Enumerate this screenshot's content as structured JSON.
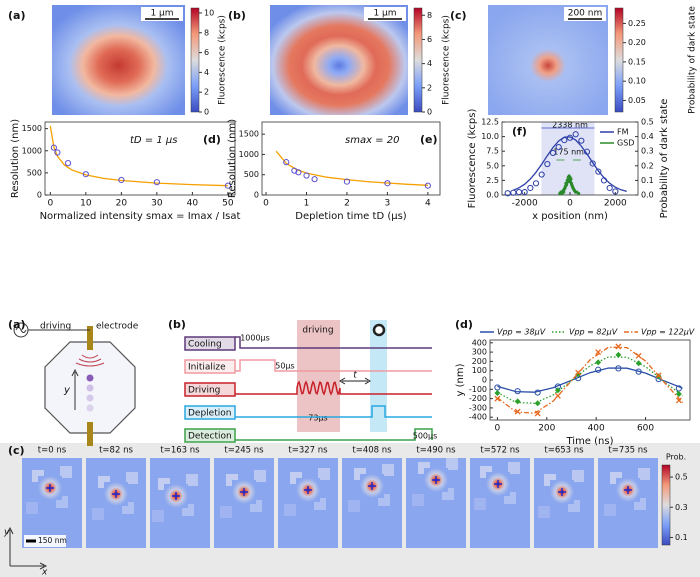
{
  "chart_data": [
    {
      "type": "heatmap",
      "panel": "(a)",
      "pattern": "spot",
      "scalebar": "1 μm",
      "colorbar_label": "Fluorescence (kcps)",
      "clim": [
        0,
        10.5
      ],
      "cticks": [
        0,
        2,
        4,
        6,
        8,
        10
      ]
    },
    {
      "type": "heatmap",
      "panel": "(b)",
      "pattern": "donut",
      "scalebar": "1 μm",
      "colorbar_label": "Fluorescence (kcps)",
      "clim": [
        0,
        8.6
      ],
      "cticks": [
        0,
        2,
        4,
        6,
        8
      ]
    },
    {
      "type": "heatmap",
      "panel": "(c)",
      "pattern": "dot",
      "scalebar": "200 nm",
      "colorbar_label": "Probability of dark state",
      "clim": [
        0.02,
        0.29
      ],
      "cticks": [
        0.05,
        {
          "value": 0.1,
          "label": "0.10"
        },
        0.15,
        {
          "value": 0.2,
          "label": "0.20"
        },
        0.25
      ]
    },
    {
      "type": "scatter",
      "panel": "(d)",
      "annotation": "tD = 1 μs",
      "xlabel": "Normalized intensity smax = Imax / Isat",
      "ylabel": "Resolution (nm)",
      "xlim": [
        -1.5,
        52
      ],
      "ylim": [
        0,
        1650
      ],
      "xticks": [
        0,
        10,
        20,
        30,
        40,
        50
      ],
      "yticks": [
        0,
        500,
        1000,
        1500
      ],
      "series": [
        {
          "color": "#5b4fcf",
          "marker": "open-circle",
          "x": [
            1,
            2,
            5,
            10,
            20,
            30,
            50
          ],
          "values": [
            1070,
            960,
            720,
            470,
            340,
            290,
            210
          ],
          "fit_color": "#f5a000",
          "fit_style": "solid",
          "fit_x": [
            0,
            1,
            2,
            4,
            6,
            10,
            15,
            20,
            30,
            40,
            50
          ],
          "fit": [
            1560,
            1082,
            878,
            676,
            570,
            454,
            376,
            328,
            270,
            235,
            210
          ]
        }
      ]
    },
    {
      "type": "scatter",
      "panel": "(e)",
      "annotation": "smax = 20",
      "xlabel": "Depletion time tD (μs)",
      "ylabel": "Resolution (nm)",
      "xlim": [
        -0.1,
        4.3
      ],
      "ylim": [
        0,
        1800
      ],
      "xticks": [
        0,
        1,
        2,
        3,
        4
      ],
      "yticks": [
        0,
        500,
        1000,
        1500
      ],
      "series": [
        {
          "color": "#5b4fcf",
          "marker": "open-circle",
          "x": [
            0.5,
            0.7,
            0.8,
            1.0,
            1.2,
            2,
            3,
            4
          ],
          "values": [
            810,
            600,
            560,
            480,
            390,
            330,
            290,
            230
          ],
          "fit_color": "#f5a000",
          "fit_style": "solid",
          "fit_x": [
            0.25,
            0.5,
            0.75,
            1,
            1.5,
            2,
            2.5,
            3,
            3.5,
            4
          ],
          "fit": [
            1080,
            780,
            630,
            540,
            440,
            380,
            330,
            295,
            265,
            240
          ]
        }
      ]
    },
    {
      "type": "scatter",
      "panel": "(f)",
      "annotations": [
        "2338 nm",
        "175 nm"
      ],
      "xlabel": "x position (nm)",
      "ylabel": "Fluorescence (kcps)",
      "y2label": "Probability of dark state",
      "ylabel_color": "#3347c8",
      "y2label_color": "#2a8a2a",
      "legend": "upper right",
      "xlim": [
        -3000,
        3000
      ],
      "ylim": [
        0,
        12.5
      ],
      "y2lim": [
        0,
        0.5
      ],
      "xticks": [
        -2000,
        0,
        2000
      ],
      "yticks": [
        {
          "value": 0,
          "label": "0.0"
        },
        2.5,
        {
          "value": 5,
          "label": "5.0"
        },
        7.5,
        {
          "value": 10,
          "label": "10.0"
        },
        12.5
      ],
      "y2ticks": [
        {
          "value": 0,
          "label": "0.0"
        },
        0.1,
        0.2,
        0.3,
        0.4,
        0.5
      ],
      "series": [
        {
          "name": "FM",
          "color": "#2d3fa8",
          "marker": "open-circle",
          "x": [
            -2750,
            -2500,
            -2250,
            -2000,
            -1750,
            -1500,
            -1250,
            -1000,
            -750,
            -500,
            -250,
            0,
            250,
            500,
            750,
            1000,
            1250,
            1500,
            1750,
            2000
          ],
          "values": [
            0.3,
            0.4,
            0.5,
            0.5,
            1.2,
            2.0,
            3.5,
            5.3,
            7.2,
            8.2,
            9.4,
            9.8,
            10.4,
            9.3,
            7.4,
            5.4,
            4.0,
            2.5,
            1.2,
            0.6
          ],
          "fit_color": "#2d3fa8",
          "fit_style": "solid",
          "fit_x": [
            -2500,
            -2250,
            -2000,
            -1750,
            -1500,
            -1250,
            -1000,
            -750,
            -500,
            -250,
            0,
            250,
            500,
            750,
            1000,
            1250,
            1500,
            1750,
            2000,
            2250,
            2500
          ],
          "fit": [
            0.82,
            1.23,
            1.85,
            2.74,
            3.89,
            5.27,
            6.73,
            8.13,
            9.24,
            9.89,
            9.95,
            9.42,
            8.38,
            7.02,
            5.55,
            4.15,
            2.95,
            2.01,
            1.34,
            0.89,
            0.61
          ]
        },
        {
          "name": "GSD",
          "color": "#2a8a2a",
          "marker": "dot",
          "axis": "y2",
          "x": [
            -450,
            -400,
            -350,
            -300,
            -280,
            -250,
            -220,
            -200,
            -180,
            -150,
            -120,
            -100,
            -80,
            -60,
            -40,
            -20,
            0,
            20,
            40,
            60,
            80,
            100,
            130,
            160,
            200,
            250,
            300,
            380
          ],
          "values": [
            0.01,
            0.02,
            0.01,
            0.03,
            0.02,
            0.04,
            0.05,
            0.06,
            0.08,
            0.07,
            0.1,
            0.09,
            0.12,
            0.11,
            0.13,
            0.1,
            0.12,
            0.09,
            0.11,
            0.08,
            0.07,
            0.06,
            0.05,
            0.04,
            0.03,
            0.02,
            0.02,
            0.01
          ]
        }
      ]
    },
    {
      "type": "diagram",
      "panel": "(a)",
      "labels": [
        "driving",
        "electrode",
        "y"
      ]
    },
    {
      "type": "timing",
      "panel": "(b)",
      "band_label": "driving",
      "delay": "t",
      "rows": [
        {
          "name": "Cooling",
          "color": "#5d3a7a",
          "duration": "1000μs"
        },
        {
          "name": "Initialize",
          "color": "#f09aa0",
          "duration": "50μs"
        },
        {
          "name": "Driving",
          "color": "#c8202a",
          "duration": "73μs"
        },
        {
          "name": "Depletion",
          "color": "#2aa8e0"
        },
        {
          "name": "Detection",
          "color": "#3aa04a",
          "duration": "500μs"
        }
      ]
    },
    {
      "type": "scatter",
      "panel": "(d)",
      "xlabel": "Time (ns)",
      "ylabel": "y (nm)",
      "legend": "top",
      "xlim": [
        -30,
        780
      ],
      "ylim": [
        -430,
        430
      ],
      "xticks": [
        0,
        200,
        400,
        600
      ],
      "yticks": [
        -400,
        -300,
        -200,
        -100,
        0,
        100,
        200,
        300,
        400
      ],
      "series": [
        {
          "name": "Vpp = 38μV",
          "color": "#2b4fa8",
          "marker": "open-circle",
          "x": [
            0,
            82,
            163,
            245,
            327,
            408,
            490,
            572,
            653,
            735
          ],
          "values": [
            -80,
            -120,
            -135,
            -70,
            20,
            110,
            125,
            90,
            10,
            -90
          ],
          "fit_color": "#2b4fa8",
          "fit_style": "solid",
          "fit_x": [
            0,
            75,
            150,
            225,
            300,
            375,
            450,
            525,
            600,
            675,
            750
          ],
          "fit": [
            -69,
            -125,
            -131,
            -83,
            -3,
            79,
            129,
            127,
            74,
            -9,
            -88
          ]
        },
        {
          "name": "Vpp = 82μV",
          "color": "#2ca02c",
          "marker": "diamond",
          "x": [
            0,
            82,
            163,
            245,
            327,
            408,
            490,
            572,
            653,
            735
          ],
          "values": [
            -140,
            -230,
            -250,
            -110,
            60,
            190,
            270,
            180,
            40,
            -150
          ],
          "fit_color": "#2ca02c",
          "fit_style": "dotted",
          "fit_x": [
            0,
            75,
            150,
            225,
            300,
            375,
            450,
            525,
            600,
            675,
            750
          ],
          "fit": [
            -133,
            -241,
            -251,
            -161,
            -6,
            152,
            248,
            244,
            143,
            -17,
            -169
          ]
        },
        {
          "name": "Vpp = 122μV",
          "color": "#e8681e",
          "marker": "cross",
          "x": [
            0,
            82,
            163,
            245,
            327,
            408,
            490,
            572,
            653,
            735
          ],
          "values": [
            -200,
            -340,
            -360,
            -170,
            80,
            300,
            360,
            260,
            50,
            -220
          ],
          "fit_color": "#e8681e",
          "fit_style": "dashdot",
          "fit_x": [
            0,
            75,
            150,
            225,
            300,
            375,
            450,
            525,
            600,
            675,
            750
          ],
          "fit": [
            -190,
            -343,
            -358,
            -229,
            -8,
            216,
            353,
            348,
            203,
            -24,
            -241
          ]
        }
      ]
    },
    {
      "type": "heatmap_series",
      "panel": "(c)",
      "titles": [
        "t=0 ns",
        "t=82 ns",
        "t=163 ns",
        "t=245 ns",
        "t=327 ns",
        "t=408 ns",
        "t=490 ns",
        "t=572 ns",
        "t=653 ns",
        "t=735 ns"
      ],
      "colorbar_label": "Prob.",
      "clim": [
        0.05,
        0.58
      ],
      "cticks": [
        0.1,
        0.3,
        0.5
      ],
      "scalebar": "150 nm",
      "axis_labels": [
        "y",
        "x"
      ]
    }
  ]
}
